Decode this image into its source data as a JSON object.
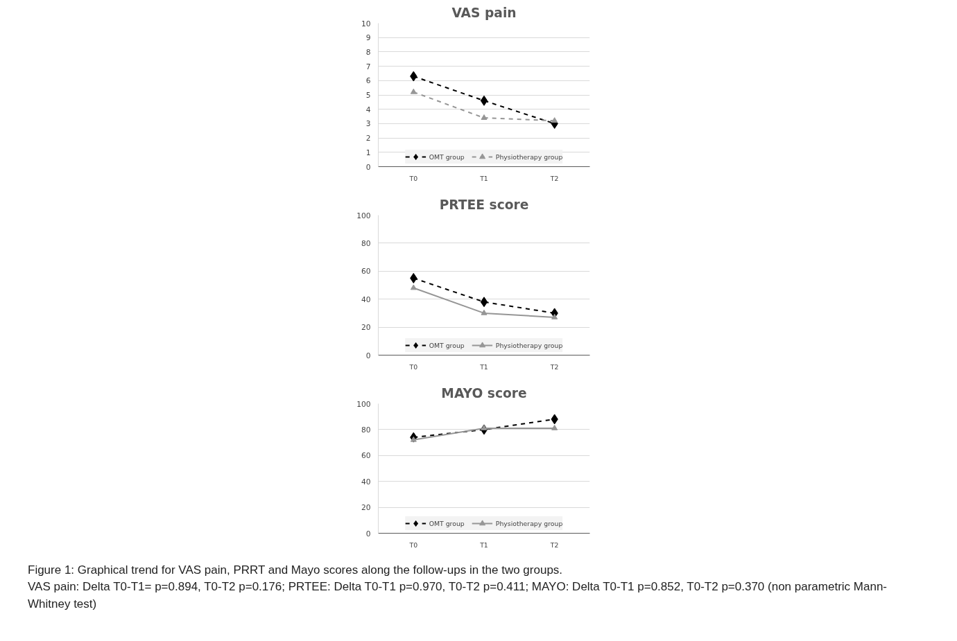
{
  "chart_data": [
    {
      "type": "line",
      "title": "VAS pain",
      "categories": [
        "T0",
        "T1",
        "T2"
      ],
      "ylim": [
        0,
        10
      ],
      "yticks": [
        0,
        1,
        2,
        3,
        4,
        5,
        6,
        7,
        8,
        9,
        10
      ],
      "grid": "y",
      "legend": "bottom",
      "series": [
        {
          "name": "OMT group",
          "color": "#000000",
          "values": [
            6.3,
            4.6,
            3.0
          ],
          "marker": "diamond",
          "line_style": "dashed"
        },
        {
          "name": "Physiotherapy group",
          "color": "#969696",
          "values": [
            5.2,
            3.4,
            3.2
          ],
          "marker": "triangle",
          "line_style": "dashed"
        }
      ]
    },
    {
      "type": "line",
      "title": "PRTEE score",
      "categories": [
        "T0",
        "T1",
        "T2"
      ],
      "ylim": [
        0,
        100
      ],
      "yticks": [
        0,
        20,
        40,
        60,
        80,
        100
      ],
      "grid": "y",
      "legend": "bottom",
      "series": [
        {
          "name": "OMT group",
          "color": "#000000",
          "values": [
            55,
            38,
            30
          ],
          "marker": "diamond",
          "line_style": "dashed"
        },
        {
          "name": "Physiotherapy group",
          "color": "#969696",
          "values": [
            48,
            30,
            27
          ],
          "marker": "triangle",
          "line_style": "solid"
        }
      ]
    },
    {
      "type": "line",
      "title": "MAYO score",
      "categories": [
        "T0",
        "T1",
        "T2"
      ],
      "ylim": [
        0,
        100
      ],
      "yticks": [
        0,
        20,
        40,
        60,
        80,
        100
      ],
      "grid": "y",
      "legend": "bottom",
      "series": [
        {
          "name": "OMT group",
          "color": "#000000",
          "values": [
            74,
            80,
            88
          ],
          "marker": "diamond",
          "line_style": "dashed"
        },
        {
          "name": "Physiotherapy group",
          "color": "#969696",
          "values": [
            72,
            81,
            81
          ],
          "marker": "triangle",
          "line_style": "solid"
        }
      ],
      "annotations": [
        "Figure 1: Graphical trend for VAS pain, PRRT and Mayo scores along the follow-ups in the two groups.",
        "VAS pain: Delta T0-T1= p=0.894, T0-T2 p=0.176; PRTEE: Delta T0-T1 p=0.970, T0-T2 p=0.411; MAYO: Delta T0-T1 p=0.852, T0-T2 p=0.370 (non parametric Mann-Whitney test)"
      ]
    }
  ]
}
